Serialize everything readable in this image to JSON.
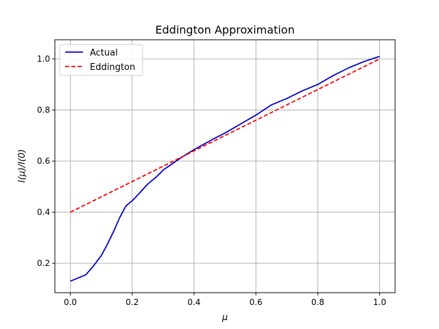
{
  "chart_data": {
    "type": "line",
    "title": "Eddington Approximation",
    "xlabel": "μ",
    "ylabel": "I(μ)/I(0)",
    "xlim": [
      -0.05,
      1.05
    ],
    "ylim": [
      0.085,
      1.075
    ],
    "x_ticks": [
      "0.0",
      "0.2",
      "0.4",
      "0.6",
      "0.8",
      "1.0"
    ],
    "y_ticks": [
      "0.2",
      "0.4",
      "0.6",
      "0.8",
      "1.0"
    ],
    "grid": true,
    "legend": {
      "position": "top-left"
    },
    "series": [
      {
        "name": "Actual",
        "color": "#0000cc",
        "style": "solid",
        "x": [
          0.0,
          0.05,
          0.075,
          0.1,
          0.12,
          0.14,
          0.16,
          0.18,
          0.2,
          0.22,
          0.25,
          0.28,
          0.3,
          0.33,
          0.36,
          0.4,
          0.43,
          0.46,
          0.5,
          0.55,
          0.6,
          0.65,
          0.7,
          0.75,
          0.8,
          0.85,
          0.9,
          0.95,
          1.0
        ],
        "values": [
          0.13,
          0.155,
          0.19,
          0.23,
          0.275,
          0.325,
          0.38,
          0.425,
          0.445,
          0.47,
          0.51,
          0.54,
          0.565,
          0.59,
          0.615,
          0.645,
          0.665,
          0.685,
          0.71,
          0.745,
          0.78,
          0.82,
          0.845,
          0.875,
          0.9,
          0.935,
          0.965,
          0.99,
          1.01
        ]
      },
      {
        "name": "Eddington",
        "color": "#ff0000",
        "style": "dashed",
        "x": [
          0.0,
          1.0
        ],
        "values": [
          0.4,
          1.0
        ]
      }
    ]
  }
}
